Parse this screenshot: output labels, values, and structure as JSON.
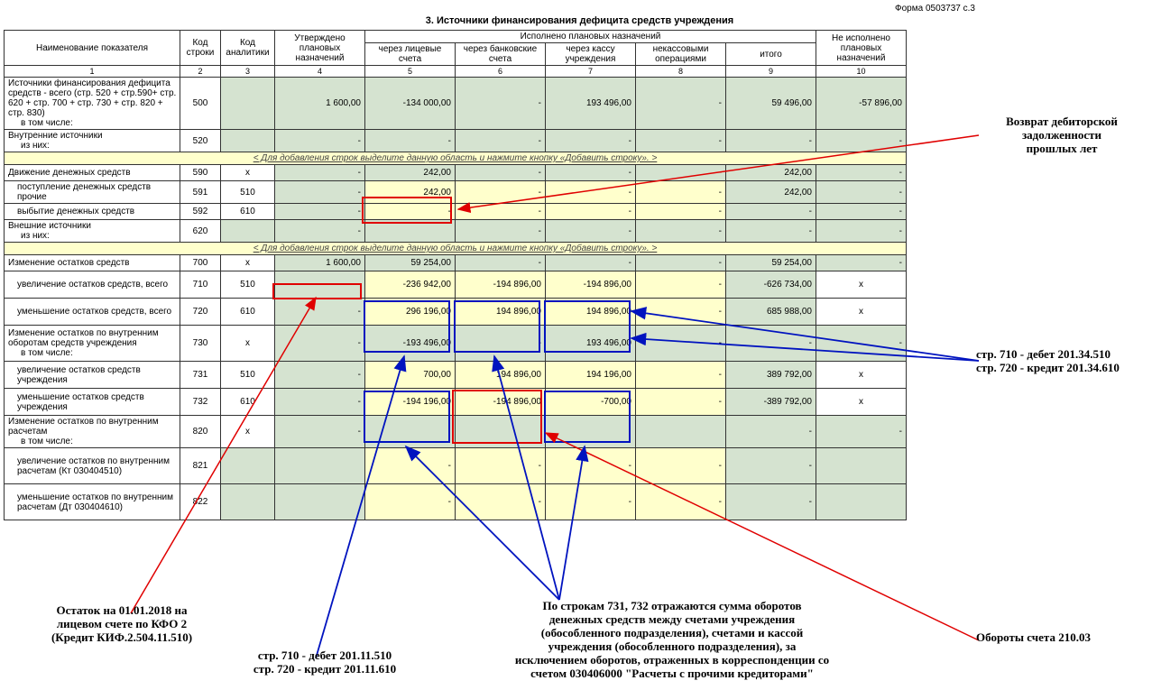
{
  "form_code": "Форма 0503737  с.3",
  "title": "3. Источники финансирования дефицита средств учреждения",
  "headers": {
    "c1": "Наименование показателя",
    "c2": "Код строки",
    "c3": "Код аналитики",
    "c4": "Утверждено плановых назначений",
    "c5g": "Исполнено плановых назначений",
    "c5": "через лицевые счета",
    "c6": "через банковские счета",
    "c7": "через кассу учреждения",
    "c8": "некассовыми операциями",
    "c9": "итого",
    "c10": "Не исполнено плановых назначений"
  },
  "colnums": {
    "c1": "1",
    "c2": "2",
    "c3": "3",
    "c4": "4",
    "c5": "5",
    "c6": "6",
    "c7": "7",
    "c8": "8",
    "c9": "9",
    "c10": "10"
  },
  "rows": {
    "r500": {
      "name": "Источники финансирования дефицита средств - всего (стр. 520 + стр.590+ стр. 620 + стр. 700 + стр. 730 + стр. 820 + стр. 830)",
      "code": "500",
      "anal": "",
      "v4": "1 600,00",
      "v5": "-134 000,00",
      "v6": "-",
      "v7": "193 496,00",
      "v8": "-",
      "v9": "59 496,00",
      "v10": "-57 896,00"
    },
    "r500a": {
      "name": "в том числе:"
    },
    "r520": {
      "name": "Внутренние источники",
      "code": "520",
      "v4": "-",
      "v5": "-",
      "v6": "-",
      "v7": "-",
      "v8": "-",
      "v9": "-",
      "v10": "-"
    },
    "r520a": {
      "name": "из них:"
    },
    "r590": {
      "name": "Движение денежных средств",
      "code": "590",
      "anal": "x",
      "v4": "-",
      "v5": "242,00",
      "v6": "-",
      "v7": "-",
      "v8": "-",
      "v9": "242,00",
      "v10": "-"
    },
    "r591": {
      "name": "поступление денежных средств прочие",
      "code": "591",
      "anal": "510",
      "v4": "-",
      "v5": "242,00",
      "v6": "-",
      "v7": "-",
      "v8": "-",
      "v9": "242,00",
      "v10": "-"
    },
    "r592": {
      "name": "выбытие денежных средств",
      "code": "592",
      "anal": "610",
      "v4": "-",
      "v5": "-",
      "v6": "-",
      "v7": "-",
      "v8": "-",
      "v9": "-",
      "v10": "-"
    },
    "r620": {
      "name": "Внешние источники",
      "code": "620",
      "v4": "-",
      "v5": "",
      "v6": "-",
      "v7": "-",
      "v8": "-",
      "v9": "-",
      "v10": "-"
    },
    "r620a": {
      "name": "из них:"
    },
    "r700": {
      "name": "Изменение остатков средств",
      "code": "700",
      "anal": "x",
      "v4": "1 600,00",
      "v5": "59 254,00",
      "v6": "-",
      "v7": "-",
      "v8": "-",
      "v9": "59 254,00",
      "v10": "-"
    },
    "r710": {
      "name": "увеличение остатков средств, всего",
      "code": "710",
      "anal": "510",
      "v4": "-",
      "v5": "-236 942,00",
      "v6": "-194 896,00",
      "v7": "-194 896,00",
      "v8": "-",
      "v9": "-626 734,00",
      "v10": "x"
    },
    "r720": {
      "name": "уменьшение остатков средств, всего",
      "code": "720",
      "anal": "610",
      "v4": "-",
      "v5": "296 196,00",
      "v6": "194 896,00",
      "v7": "194 896,00",
      "v8": "-",
      "v9": "685 988,00",
      "v10": "x"
    },
    "r730": {
      "name": "Изменение остатков по внутренним оборотам средств учреждения",
      "code": "730",
      "anal": "x",
      "v4": "-",
      "v5": "-193 496,00",
      "v6": "-",
      "v7": "193 496,00",
      "v8": "-",
      "v9": "-",
      "v10": "-"
    },
    "r730a": {
      "name": "в том числе:"
    },
    "r731": {
      "name": "увеличение остатков средств учреждения",
      "code": "731",
      "anal": "510",
      "v4": "-",
      "v5": "700,00",
      "v6": "194 896,00",
      "v7": "194 196,00",
      "v8": "-",
      "v9": "389 792,00",
      "v10": "x"
    },
    "r732": {
      "name": "уменьшение остатков средств учреждения",
      "code": "732",
      "anal": "610",
      "v4": "-",
      "v5": "-194 196,00",
      "v6": "-194 896,00",
      "v7": "-700,00",
      "v8": "-",
      "v9": "-389 792,00",
      "v10": "x"
    },
    "r820": {
      "name": "Изменение остатков по внутренним расчетам",
      "code": "820",
      "anal": "x",
      "v4": "-",
      "v5": "",
      "v6": "",
      "v7": "",
      "v8": "",
      "v9": "-",
      "v10": "-"
    },
    "r820a": {
      "name": "в том числе:"
    },
    "r821": {
      "name": "увеличение остатков по внутренним расчетам (Кт 030404510)",
      "code": "821",
      "v4": "",
      "v5": "-",
      "v6": "-",
      "v7": "-",
      "v8": "-",
      "v9": "-",
      "v10": ""
    },
    "r822": {
      "name": "уменьшение остатков по внутренним расчетам (Дт 030404610)",
      "code": "822",
      "v4": "",
      "v5": "-",
      "v6": "-",
      "v7": "-",
      "v8": "-",
      "v9": "-",
      "v10": ""
    }
  },
  "addrow": "< Для добавления строк выделите данную область и нажмите кнопку «Добавить строку». >",
  "annotations": {
    "a1": "Возврат дебиторской\nзадолженности\nпрошлых лет",
    "a2": "стр. 710 - дебет 201.34.510\nстр. 720 - кредит 201.34.610",
    "a3": "Обороты счета 210.03",
    "a4": "Остаток на 01.01.2018 на\nлицевом счете по КФО 2\n(Кредит КИФ.2.504.11.510)",
    "a5": "стр. 710 - дебет 201.11.510\nстр. 720 - кредит 201.11.610",
    "a6": "По строкам 731, 732 отражаются сумма оборотов\nденежных средств между счетами учреждения\n(обособленного подразделения), счетами и кассой\nучреждения (обособленного подразделения), за\nисключением оборотов, отраженных в корреспонденции со\nсчетом 030406000 \"Расчеты с прочими кредиторами\""
  },
  "colors": {
    "red": "#e00000",
    "blue": "#0013bf",
    "green_bg": "#d5e3d0",
    "yellow_bg": "#ffffcc"
  }
}
